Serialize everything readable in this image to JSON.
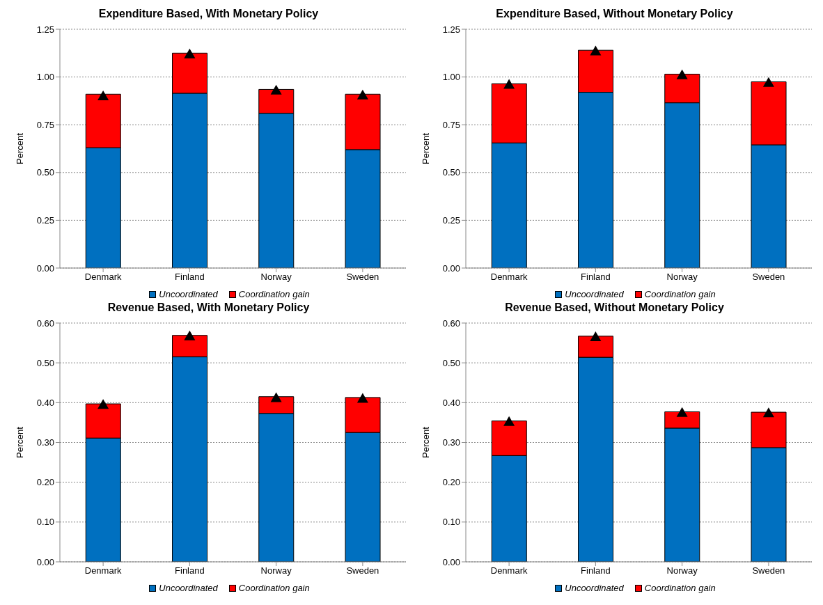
{
  "chart_data": [
    {
      "type": "bar",
      "title": "Expenditure Based, With Monetary Policy",
      "ylabel": "Percent",
      "categories": [
        "Denmark",
        "Finland",
        "Norway",
        "Sweden"
      ],
      "stacked": true,
      "grid": "y",
      "legend": "bottom",
      "ylim": [
        0,
        1.25
      ],
      "yticks": [
        {
          "value": 0,
          "label": "0.00"
        },
        {
          "value": 0.25,
          "label": "0.25"
        },
        {
          "value": 0.5,
          "label": "0.50"
        },
        {
          "value": 0.75,
          "label": "0.75"
        },
        {
          "value": 1,
          "label": "1.00"
        },
        {
          "value": 1.25,
          "label": "1.25"
        }
      ],
      "series": [
        {
          "name": "Uncoordinated",
          "color": "#0070c0",
          "values": [
            0.63,
            0.915,
            0.81,
            0.62
          ]
        },
        {
          "name": "Coordination gain",
          "color": "#ff0000",
          "values": [
            0.28,
            0.21,
            0.125,
            0.29
          ]
        },
        {
          "type": "scatter",
          "color": "#000000",
          "marker": "triangle",
          "x": [
            "Denmark",
            "Finland",
            "Norway",
            "Sweden"
          ],
          "values": [
            0.9,
            1.12,
            0.93,
            0.905
          ]
        }
      ]
    },
    {
      "type": "bar",
      "title": "Expenditure Based, Without Monetary Policy",
      "ylabel": "Percent",
      "categories": [
        "Denmark",
        "Finland",
        "Norway",
        "Sweden"
      ],
      "stacked": true,
      "grid": "y",
      "legend": "bottom",
      "ylim": [
        0,
        1.25
      ],
      "yticks": [
        {
          "value": 0,
          "label": "0.00"
        },
        {
          "value": 0.25,
          "label": "0.25"
        },
        {
          "value": 0.5,
          "label": "0.50"
        },
        {
          "value": 0.75,
          "label": "0.75"
        },
        {
          "value": 1,
          "label": "1.00"
        },
        {
          "value": 1.25,
          "label": "1.25"
        }
      ],
      "series": [
        {
          "name": "Uncoordinated",
          "color": "#0070c0",
          "values": [
            0.655,
            0.92,
            0.865,
            0.645
          ]
        },
        {
          "name": "Coordination gain",
          "color": "#ff0000",
          "values": [
            0.31,
            0.22,
            0.15,
            0.33
          ]
        },
        {
          "type": "scatter",
          "color": "#000000",
          "marker": "triangle",
          "x": [
            "Denmark",
            "Finland",
            "Norway",
            "Sweden"
          ],
          "values": [
            0.96,
            1.135,
            1.01,
            0.97
          ]
        }
      ]
    },
    {
      "type": "bar",
      "title": "Revenue Based, With Monetary Policy",
      "ylabel": "Percent",
      "categories": [
        "Denmark",
        "Finland",
        "Norway",
        "Sweden"
      ],
      "stacked": true,
      "grid": "y",
      "legend": "bottom",
      "ylim": [
        0,
        0.6
      ],
      "yticks": [
        {
          "value": 0,
          "label": "0.00"
        },
        {
          "value": 0.1,
          "label": "0.10"
        },
        {
          "value": 0.2,
          "label": "0.20"
        },
        {
          "value": 0.3,
          "label": "0.30"
        },
        {
          "value": 0.4,
          "label": "0.40"
        },
        {
          "value": 0.5,
          "label": "0.50"
        },
        {
          "value": 0.6,
          "label": "0.60"
        }
      ],
      "series": [
        {
          "name": "Uncoordinated",
          "color": "#0070c0",
          "values": [
            0.311,
            0.515,
            0.373,
            0.325
          ]
        },
        {
          "name": "Coordination gain",
          "color": "#ff0000",
          "values": [
            0.086,
            0.054,
            0.042,
            0.088
          ]
        },
        {
          "type": "scatter",
          "color": "#000000",
          "marker": "triangle",
          "x": [
            "Denmark",
            "Finland",
            "Norway",
            "Sweden"
          ],
          "values": [
            0.395,
            0.567,
            0.412,
            0.41
          ]
        }
      ]
    },
    {
      "type": "bar",
      "title": "Revenue Based, Without Monetary Policy",
      "ylabel": "Percent",
      "categories": [
        "Denmark",
        "Finland",
        "Norway",
        "Sweden"
      ],
      "stacked": true,
      "grid": "y",
      "legend": "bottom",
      "ylim": [
        0,
        0.6
      ],
      "yticks": [
        {
          "value": 0,
          "label": "0.00"
        },
        {
          "value": 0.1,
          "label": "0.10"
        },
        {
          "value": 0.2,
          "label": "0.20"
        },
        {
          "value": 0.3,
          "label": "0.30"
        },
        {
          "value": 0.4,
          "label": "0.40"
        },
        {
          "value": 0.5,
          "label": "0.50"
        },
        {
          "value": 0.6,
          "label": "0.60"
        }
      ],
      "series": [
        {
          "name": "Uncoordinated",
          "color": "#0070c0",
          "values": [
            0.267,
            0.514,
            0.336,
            0.287
          ]
        },
        {
          "name": "Coordination gain",
          "color": "#ff0000",
          "values": [
            0.087,
            0.053,
            0.041,
            0.089
          ]
        },
        {
          "type": "scatter",
          "color": "#000000",
          "marker": "triangle",
          "x": [
            "Denmark",
            "Finland",
            "Norway",
            "Sweden"
          ],
          "values": [
            0.352,
            0.565,
            0.375,
            0.374
          ]
        }
      ]
    }
  ]
}
